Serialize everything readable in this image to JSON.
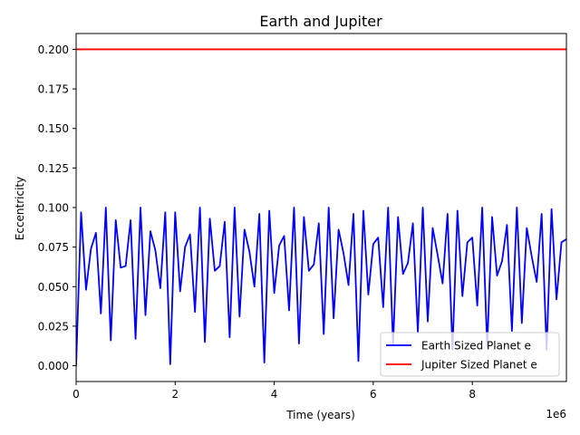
{
  "chart_data": {
    "type": "line",
    "title": "Earth and Jupiter",
    "xlabel": "Time (years)",
    "ylabel": "Eccentricity",
    "x_offset_text": "1e6",
    "xlim": [
      0,
      9.9
    ],
    "ylim": [
      -0.01,
      0.21
    ],
    "xticks": [
      0,
      2,
      4,
      6,
      8
    ],
    "xtick_labels": [
      "0",
      "2",
      "4",
      "6",
      "8"
    ],
    "yticks": [
      0.0,
      0.025,
      0.05,
      0.075,
      0.1,
      0.125,
      0.15,
      0.175,
      0.2
    ],
    "ytick_labels": [
      "0.000",
      "0.025",
      "0.050",
      "0.075",
      "0.100",
      "0.125",
      "0.150",
      "0.175",
      "0.200"
    ],
    "grid": false,
    "legend_position": "lower-right",
    "x": [
      0.0,
      0.1,
      0.2,
      0.3,
      0.4,
      0.5,
      0.6,
      0.7,
      0.8,
      0.9,
      1.0,
      1.1,
      1.2,
      1.3,
      1.4,
      1.5,
      1.6,
      1.7,
      1.8,
      1.9,
      2.0,
      2.1,
      2.2,
      2.3,
      2.4,
      2.5,
      2.6,
      2.7,
      2.8,
      2.9,
      3.0,
      3.1,
      3.2,
      3.3,
      3.4,
      3.5,
      3.6,
      3.7,
      3.8,
      3.9,
      4.0,
      4.1,
      4.2,
      4.3,
      4.4,
      4.5,
      4.6,
      4.7,
      4.8,
      4.9,
      5.0,
      5.1,
      5.2,
      5.3,
      5.4,
      5.5,
      5.6,
      5.7,
      5.8,
      5.9,
      6.0,
      6.1,
      6.2,
      6.3,
      6.4,
      6.5,
      6.6,
      6.7,
      6.8,
      6.9,
      7.0,
      7.1,
      7.2,
      7.3,
      7.4,
      7.5,
      7.6,
      7.7,
      7.8,
      7.9,
      8.0,
      8.1,
      8.2,
      8.3,
      8.4,
      8.5,
      8.6,
      8.7,
      8.8,
      8.9,
      9.0,
      9.1,
      9.2,
      9.3,
      9.4,
      9.5,
      9.6,
      9.7,
      9.8,
      9.9
    ],
    "series": [
      {
        "name": "Earth Sized Planet e",
        "color": "#0000ff",
        "values": [
          0.0,
          0.097,
          0.048,
          0.074,
          0.084,
          0.033,
          0.1,
          0.016,
          0.092,
          0.062,
          0.063,
          0.092,
          0.017,
          0.1,
          0.032,
          0.085,
          0.073,
          0.049,
          0.097,
          0.001,
          0.097,
          0.047,
          0.075,
          0.083,
          0.034,
          0.1,
          0.015,
          0.093,
          0.06,
          0.063,
          0.091,
          0.018,
          0.1,
          0.031,
          0.086,
          0.072,
          0.05,
          0.096,
          0.002,
          0.098,
          0.046,
          0.076,
          0.082,
          0.035,
          0.1,
          0.014,
          0.094,
          0.06,
          0.064,
          0.09,
          0.02,
          0.1,
          0.03,
          0.086,
          0.071,
          0.051,
          0.096,
          0.003,
          0.098,
          0.045,
          0.077,
          0.081,
          0.037,
          0.1,
          0.013,
          0.094,
          0.058,
          0.065,
          0.09,
          0.021,
          0.1,
          0.028,
          0.087,
          0.07,
          0.052,
          0.096,
          0.01,
          0.098,
          0.044,
          0.078,
          0.081,
          0.038,
          0.1,
          0.012,
          0.094,
          0.057,
          0.066,
          0.089,
          0.022,
          0.1,
          0.027,
          0.087,
          0.069,
          0.053,
          0.096,
          0.01,
          0.099,
          0.042,
          0.078,
          0.08
        ]
      },
      {
        "name": "Jupiter Sized Planet e",
        "color": "#ff0000",
        "values": [
          0.2,
          0.2,
          0.2,
          0.2,
          0.2,
          0.2,
          0.2,
          0.2,
          0.2,
          0.2,
          0.2,
          0.2,
          0.2,
          0.2,
          0.2,
          0.2,
          0.2,
          0.2,
          0.2,
          0.2,
          0.2,
          0.2,
          0.2,
          0.2,
          0.2,
          0.2,
          0.2,
          0.2,
          0.2,
          0.2,
          0.2,
          0.2,
          0.2,
          0.2,
          0.2,
          0.2,
          0.2,
          0.2,
          0.2,
          0.2,
          0.2,
          0.2,
          0.2,
          0.2,
          0.2,
          0.2,
          0.2,
          0.2,
          0.2,
          0.2,
          0.2,
          0.2,
          0.2,
          0.2,
          0.2,
          0.2,
          0.2,
          0.2,
          0.2,
          0.2,
          0.2,
          0.2,
          0.2,
          0.2,
          0.2,
          0.2,
          0.2,
          0.2,
          0.2,
          0.2,
          0.2,
          0.2,
          0.2,
          0.2,
          0.2,
          0.2,
          0.2,
          0.2,
          0.2,
          0.2,
          0.2,
          0.2,
          0.2,
          0.2,
          0.2,
          0.2,
          0.2,
          0.2,
          0.2,
          0.2,
          0.2,
          0.2,
          0.2,
          0.2,
          0.2,
          0.2,
          0.2,
          0.2,
          0.2,
          0.2
        ]
      }
    ]
  }
}
